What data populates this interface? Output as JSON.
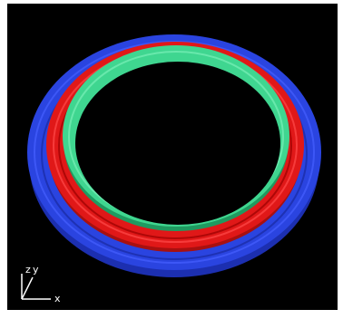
{
  "axes": {
    "z": "z",
    "y": "y",
    "x": "x"
  }
}
